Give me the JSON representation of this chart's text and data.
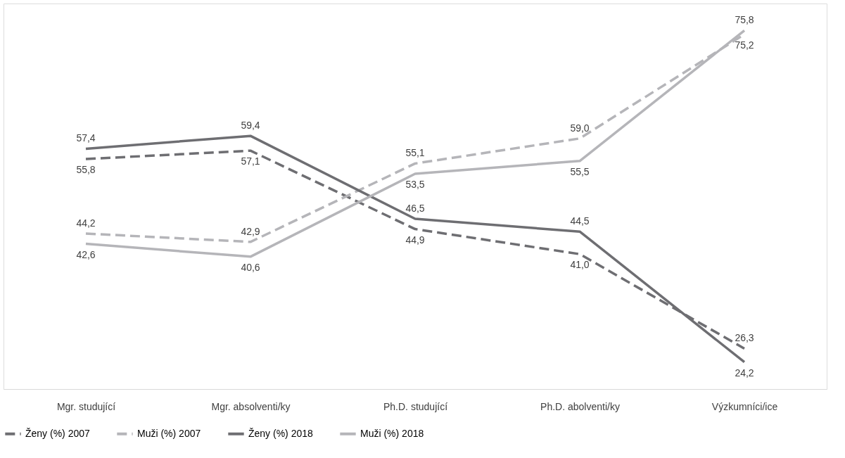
{
  "chart_data": {
    "type": "line",
    "categories": [
      "Mgr. studující",
      "Mgr. absolventi/ky",
      "Ph.D. studující",
      "Ph.D. abolventi/ky",
      "Výzkumníci/ice"
    ],
    "ylim": [
      20,
      80
    ],
    "legend": "bottom",
    "series": [
      {
        "name": "Ženy (%) 2007",
        "color": "#6e6e72",
        "line_style": "dashed",
        "values": [
          55.8,
          57.1,
          44.9,
          41.0,
          26.3
        ],
        "value_labels": [
          "55,8",
          "57,1",
          "44,9",
          "41,0",
          "26,3"
        ]
      },
      {
        "name": "Muži (%) 2007",
        "color": "#b5b5b9",
        "line_style": "dashed",
        "values": [
          44.2,
          42.9,
          55.1,
          59.0,
          75.2
        ],
        "value_labels": [
          "44,2",
          "42,9",
          "55,1",
          "59,0",
          "75,2"
        ]
      },
      {
        "name": "Ženy (%) 2018",
        "color": "#6e6e72",
        "line_style": "solid",
        "values": [
          57.4,
          59.4,
          46.5,
          44.5,
          24.2
        ],
        "value_labels": [
          "57,4",
          "59,4",
          "46,5",
          "44,5",
          "24,2"
        ]
      },
      {
        "name": "Muži (%) 2018",
        "color": "#b5b5b9",
        "line_style": "solid",
        "values": [
          42.6,
          40.6,
          53.5,
          55.5,
          75.8
        ],
        "value_labels": [
          "42,6",
          "40,6",
          "53,5",
          "55,5",
          "75,8"
        ]
      }
    ]
  }
}
